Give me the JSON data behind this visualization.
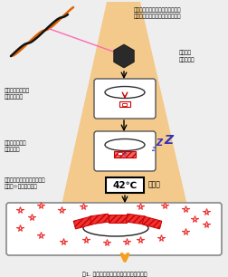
{
  "bg_color": "#eeeeee",
  "funnel_color": "#f5c47a",
  "text1": "目的の酵素をコードした遷伝子を\nスリーパーベクターにパッケージ",
  "text2": "大腸菌に\n感染させる",
  "text3": "遷伝子がゲノムに\n組み込まれる",
  "text4": "常温では酵素を\n生産しない",
  "text5": "熱伝導で遷伝子が増幅され、\n酵素（☆）を大量生産",
  "text6": "熱誘導",
  "temp_label": "42℃",
  "z1": "Z",
  "z2": "z",
  "z3": "Z",
  "caption": "図1. スリーパーベクターによる酵素生産"
}
